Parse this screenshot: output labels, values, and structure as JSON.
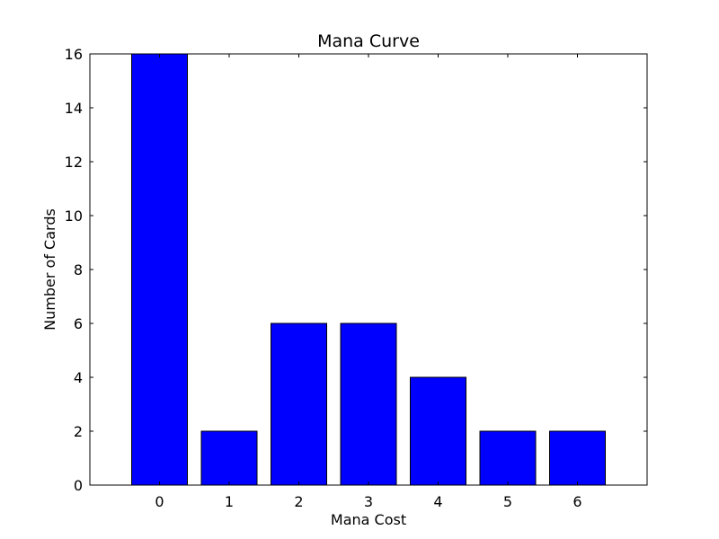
{
  "chart_data": {
    "type": "bar",
    "title": "Mana Curve",
    "xlabel": "Mana Cost",
    "ylabel": "Number of Cards",
    "categories": [
      "0",
      "1",
      "2",
      "3",
      "4",
      "5",
      "6"
    ],
    "values": [
      16,
      2,
      6,
      6,
      4,
      2,
      2
    ],
    "ylim": [
      0,
      16
    ],
    "yticks": [
      "0",
      "2",
      "4",
      "6",
      "8",
      "10",
      "12",
      "14",
      "16"
    ],
    "bar_color": "#0000ff",
    "edge_color": "#000000",
    "grid": false,
    "legend": "none"
  }
}
